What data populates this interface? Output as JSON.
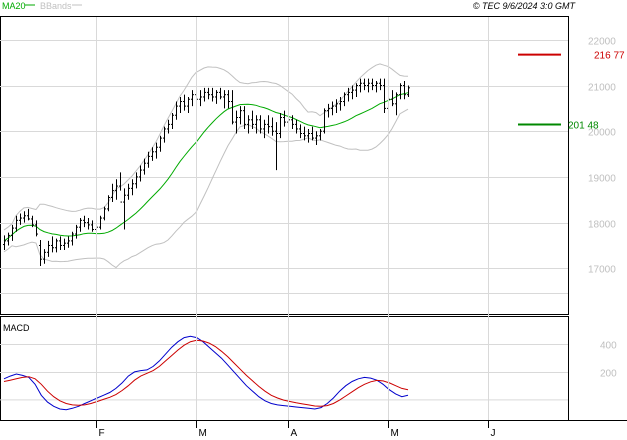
{
  "header": {
    "legend_ma": "MA20",
    "legend_bb": "BBands",
    "copyright": "© TEC 9/6/2024 3:0 GMT"
  },
  "colors": {
    "bars": "#000000",
    "ma": "#00aa00",
    "bbands": "#c0c0c0",
    "macd": "#0000cc",
    "signal": "#cc0000",
    "grid": "#d9d9d9",
    "axis_text": "#bfbfbf",
    "resistance": "#cc0000",
    "support": "#008800"
  },
  "chart_data": [
    {
      "type": "ohlc",
      "panel": "price",
      "ylim": [
        16000,
        22500
      ],
      "yticks": [
        17000,
        18000,
        19000,
        20000,
        21000,
        22000
      ],
      "ytick_labels": [
        "17000",
        "18000",
        "19000",
        "20000",
        "21000",
        "22000"
      ],
      "x_months": [
        {
          "label": "F",
          "index": 23
        },
        {
          "label": "M",
          "index": 48
        },
        {
          "label": "A",
          "index": 71
        },
        {
          "label": "M",
          "index": 96
        },
        {
          "label": "J",
          "index": 121
        }
      ],
      "bars": [
        [
          17520,
          17720,
          17400,
          17600
        ],
        [
          17600,
          17780,
          17500,
          17720
        ],
        [
          17720,
          17950,
          17600,
          17880
        ],
        [
          17880,
          18150,
          17800,
          18050
        ],
        [
          18050,
          18200,
          17950,
          18100
        ],
        [
          18100,
          18250,
          18000,
          18150
        ],
        [
          18150,
          18300,
          18050,
          18080
        ],
        [
          18080,
          18150,
          17900,
          17950
        ],
        [
          17950,
          18050,
          17700,
          17750
        ],
        [
          17500,
          17620,
          17050,
          17200
        ],
        [
          17200,
          17420,
          17100,
          17350
        ],
        [
          17350,
          17600,
          17250,
          17500
        ],
        [
          17500,
          17700,
          17350,
          17450
        ],
        [
          17450,
          17650,
          17350,
          17600
        ],
        [
          17600,
          17700,
          17400,
          17500
        ],
        [
          17500,
          17650,
          17400,
          17550
        ],
        [
          17550,
          17700,
          17450,
          17600
        ],
        [
          17600,
          17800,
          17500,
          17750
        ],
        [
          17750,
          17950,
          17650,
          17900
        ],
        [
          17900,
          18100,
          17800,
          18050
        ],
        [
          18050,
          18150,
          17900,
          18000
        ],
        [
          18000,
          18100,
          17850,
          17950
        ],
        [
          17950,
          18050,
          17800,
          17850
        ],
        [
          17850,
          17950,
          17700,
          17900
        ],
        [
          17900,
          18150,
          17850,
          18100
        ],
        [
          18100,
          18350,
          18050,
          18300
        ],
        [
          18300,
          18600,
          18250,
          18550
        ],
        [
          18550,
          18850,
          18450,
          18700
        ],
        [
          18700,
          18950,
          18500,
          18800
        ],
        [
          18800,
          19100,
          18700,
          18450
        ],
        [
          18450,
          18750,
          17850,
          18600
        ],
        [
          18600,
          18850,
          18500,
          18750
        ],
        [
          18750,
          18950,
          18600,
          18850
        ],
        [
          18850,
          19100,
          18750,
          19000
        ],
        [
          19000,
          19250,
          18900,
          19150
        ],
        [
          19150,
          19400,
          19050,
          19300
        ],
        [
          19300,
          19550,
          19200,
          19450
        ],
        [
          19450,
          19650,
          19350,
          19550
        ],
        [
          19550,
          19750,
          19400,
          19650
        ],
        [
          19650,
          19900,
          19550,
          19850
        ],
        [
          19850,
          20100,
          19750,
          20050
        ],
        [
          20050,
          20250,
          19950,
          20150
        ],
        [
          20150,
          20400,
          20050,
          20350
        ],
        [
          20350,
          20650,
          20250,
          20550
        ],
        [
          20550,
          20750,
          20400,
          20650
        ],
        [
          20650,
          20800,
          20450,
          20550
        ],
        [
          20550,
          20750,
          20400,
          20700
        ],
        [
          20700,
          20900,
          20550,
          20800
        ],
        [
          20800,
          20950,
          20600,
          20700
        ],
        [
          20700,
          20900,
          20550,
          20750
        ],
        [
          20750,
          20950,
          20650,
          20850
        ],
        [
          20850,
          20950,
          20700,
          20800
        ],
        [
          20800,
          20950,
          20650,
          20750
        ],
        [
          20750,
          20900,
          20600,
          20850
        ],
        [
          20850,
          20950,
          20700,
          20750
        ],
        [
          20750,
          20900,
          20500,
          20800
        ],
        [
          20800,
          20900,
          20500,
          20650
        ],
        [
          20650,
          20900,
          20150,
          20200
        ],
        [
          20200,
          20450,
          19950,
          20300
        ],
        [
          20300,
          20550,
          20150,
          20450
        ],
        [
          20450,
          20550,
          20050,
          20150
        ],
        [
          20150,
          20350,
          19950,
          20250
        ],
        [
          20250,
          20450,
          20050,
          20150
        ],
        [
          20150,
          20350,
          19950,
          20250
        ],
        [
          20250,
          20350,
          19950,
          20050
        ],
        [
          20050,
          20250,
          19850,
          20150
        ],
        [
          20150,
          20350,
          19950,
          20100
        ],
        [
          20100,
          20300,
          19900,
          20000
        ],
        [
          20000,
          20200,
          19150,
          19950
        ],
        [
          19950,
          20400,
          19850,
          20300
        ],
        [
          20300,
          20450,
          20100,
          20200
        ],
        [
          20200,
          20350,
          20000,
          20250
        ],
        [
          20250,
          20350,
          20050,
          20150
        ],
        [
          20150,
          20250,
          19950,
          20050
        ],
        [
          20050,
          20150,
          19850,
          19950
        ],
        [
          19950,
          20100,
          19800,
          19900
        ],
        [
          19900,
          20050,
          19750,
          19950
        ],
        [
          19950,
          20100,
          19800,
          19850
        ],
        [
          19850,
          20000,
          19700,
          19900
        ],
        [
          19900,
          20050,
          19800,
          20000
        ],
        [
          20000,
          20500,
          19950,
          20450
        ],
        [
          20450,
          20600,
          20300,
          20500
        ],
        [
          20500,
          20650,
          20350,
          20550
        ],
        [
          20550,
          20700,
          20400,
          20600
        ],
        [
          20600,
          20750,
          20450,
          20650
        ],
        [
          20650,
          20850,
          20550,
          20800
        ],
        [
          20800,
          20950,
          20650,
          20850
        ],
        [
          20850,
          21000,
          20700,
          20900
        ],
        [
          20900,
          21050,
          20750,
          21000
        ],
        [
          21000,
          21150,
          20850,
          21050
        ],
        [
          21050,
          21150,
          20900,
          21000
        ],
        [
          21000,
          21150,
          20850,
          21050
        ],
        [
          21050,
          21150,
          20900,
          21000
        ],
        [
          21000,
          21100,
          20850,
          21050
        ],
        [
          21050,
          21150,
          20900,
          21000
        ],
        [
          21000,
          21150,
          20400,
          20500
        ],
        [
          20500,
          20800,
          20300,
          20700
        ],
        [
          20700,
          20900,
          20550,
          20600
        ],
        [
          20600,
          20850,
          20350,
          20800
        ],
        [
          20800,
          21050,
          20700,
          21000
        ],
        [
          21000,
          21100,
          20700,
          20800
        ],
        [
          20800,
          21000,
          20750,
          20950
        ]
      ],
      "ma20_label": "MA20",
      "bbands_label": "BBands",
      "levels": [
        {
          "name": "resistance",
          "value": 21677,
          "label": "216 77",
          "color": "#cc0000"
        },
        {
          "name": "support",
          "value": 20148,
          "label": "201 48",
          "color": "#008800"
        }
      ]
    },
    {
      "type": "line",
      "panel": "macd",
      "title": "MACD",
      "ylim": [
        -150,
        600
      ],
      "yticks": [
        200,
        400
      ],
      "ytick_labels": [
        "200",
        "400"
      ],
      "series": [
        {
          "role": "macd",
          "color": "#0000cc",
          "values": [
            150,
            170,
            185,
            175,
            160,
            110,
            30,
            -20,
            -50,
            -70,
            -75,
            -65,
            -50,
            -30,
            -10,
            10,
            30,
            50,
            80,
            120,
            170,
            200,
            210,
            215,
            240,
            280,
            330,
            380,
            420,
            450,
            460,
            450,
            420,
            380,
            340,
            300,
            250,
            200,
            150,
            100,
            60,
            20,
            -10,
            -30,
            -40,
            -45,
            -50,
            -55,
            -60,
            -65,
            -70,
            -60,
            -30,
            10,
            60,
            100,
            130,
            150,
            160,
            155,
            140,
            110,
            70,
            40,
            20,
            30
          ]
        },
        {
          "role": "signal",
          "color": "#cc0000",
          "values": [
            130,
            140,
            150,
            160,
            165,
            150,
            110,
            60,
            20,
            -10,
            -30,
            -40,
            -42,
            -40,
            -30,
            -15,
            0,
            15,
            35,
            65,
            100,
            140,
            170,
            190,
            210,
            240,
            280,
            320,
            360,
            395,
            420,
            430,
            425,
            410,
            385,
            350,
            310,
            265,
            220,
            175,
            135,
            95,
            60,
            30,
            10,
            -5,
            -15,
            -25,
            -33,
            -40,
            -48,
            -50,
            -45,
            -30,
            -5,
            25,
            55,
            85,
            110,
            128,
            138,
            135,
            120,
            100,
            80,
            70
          ]
        }
      ]
    }
  ]
}
